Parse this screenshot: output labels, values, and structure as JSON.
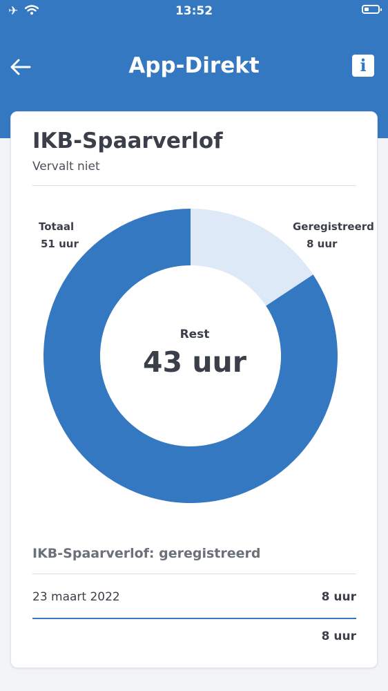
{
  "status_bar": {
    "time": "13:52",
    "icons": [
      "airplane-icon",
      "wifi-icon",
      "battery-icon"
    ]
  },
  "header": {
    "title": "App-Direkt",
    "back_icon": "arrow-left-icon",
    "info_icon": "info-icon",
    "info_glyph": "i",
    "background_color": "#3478c2"
  },
  "card": {
    "title": "IKB-Spaarverlof",
    "subtitle": "Vervalt niet"
  },
  "chart_data": {
    "type": "pie",
    "donut": true,
    "labels": {
      "total_label": "Totaal",
      "total_value": "51 uur",
      "registered_label": "Geregistreerd",
      "registered_value": "8 uur",
      "rest_label": "Rest",
      "rest_value": "43 uur"
    },
    "slices": [
      {
        "name": "Geregistreerd",
        "value": 8,
        "color": "#dde9f6"
      },
      {
        "name": "Rest",
        "value": 43,
        "color": "#3478c2"
      }
    ],
    "total": 51
  },
  "registered_section": {
    "title": "IKB-Spaarverlof: geregistreerd",
    "entries": [
      {
        "date": "23 maart 2022",
        "hours": "8 uur"
      }
    ],
    "total_hours": "8 uur"
  }
}
